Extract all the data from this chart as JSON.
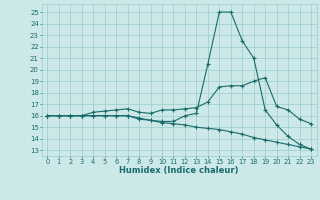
{
  "title": "",
  "xlabel": "Humidex (Indice chaleur)",
  "bg_color": "#cce8e8",
  "grid_color": "#99cccc",
  "line_color": "#1a6b6b",
  "xlim": [
    -0.5,
    23.5
  ],
  "ylim": [
    12.5,
    25.7
  ],
  "yticks": [
    13,
    14,
    15,
    16,
    17,
    18,
    19,
    20,
    21,
    22,
    23,
    24,
    25
  ],
  "xticks": [
    0,
    1,
    2,
    3,
    4,
    5,
    6,
    7,
    8,
    9,
    10,
    11,
    12,
    13,
    14,
    15,
    16,
    17,
    18,
    19,
    20,
    21,
    22,
    23
  ],
  "line1_x": [
    0,
    1,
    2,
    3,
    4,
    5,
    6,
    7,
    8,
    9,
    10,
    11,
    12,
    13,
    14,
    15,
    16,
    17,
    18,
    19,
    20,
    21,
    22,
    23
  ],
  "line1_y": [
    16,
    16,
    16,
    16,
    16,
    16,
    16,
    16,
    15.7,
    15.6,
    15.5,
    15.5,
    16.0,
    16.2,
    20.5,
    25.0,
    25.0,
    22.5,
    21.0,
    16.5,
    15.2,
    14.2,
    13.5,
    13.1
  ],
  "line2_x": [
    0,
    1,
    2,
    3,
    4,
    5,
    6,
    7,
    8,
    9,
    10,
    11,
    12,
    13,
    14,
    15,
    16,
    17,
    18,
    19,
    20,
    21,
    22,
    23
  ],
  "line2_y": [
    16,
    16,
    16,
    16,
    16.3,
    16.4,
    16.5,
    16.6,
    16.3,
    16.2,
    16.5,
    16.5,
    16.6,
    16.7,
    17.2,
    18.5,
    18.6,
    18.6,
    19.0,
    19.3,
    16.8,
    16.5,
    15.7,
    15.3
  ],
  "line3_x": [
    0,
    1,
    2,
    3,
    4,
    5,
    6,
    7,
    8,
    9,
    10,
    11,
    12,
    13,
    14,
    15,
    16,
    17,
    18,
    19,
    20,
    21,
    22,
    23
  ],
  "line3_y": [
    16,
    16,
    16,
    16,
    16,
    16,
    16,
    16,
    15.8,
    15.6,
    15.4,
    15.3,
    15.2,
    15.0,
    14.9,
    14.8,
    14.6,
    14.4,
    14.1,
    13.9,
    13.7,
    13.5,
    13.3,
    13.1
  ]
}
